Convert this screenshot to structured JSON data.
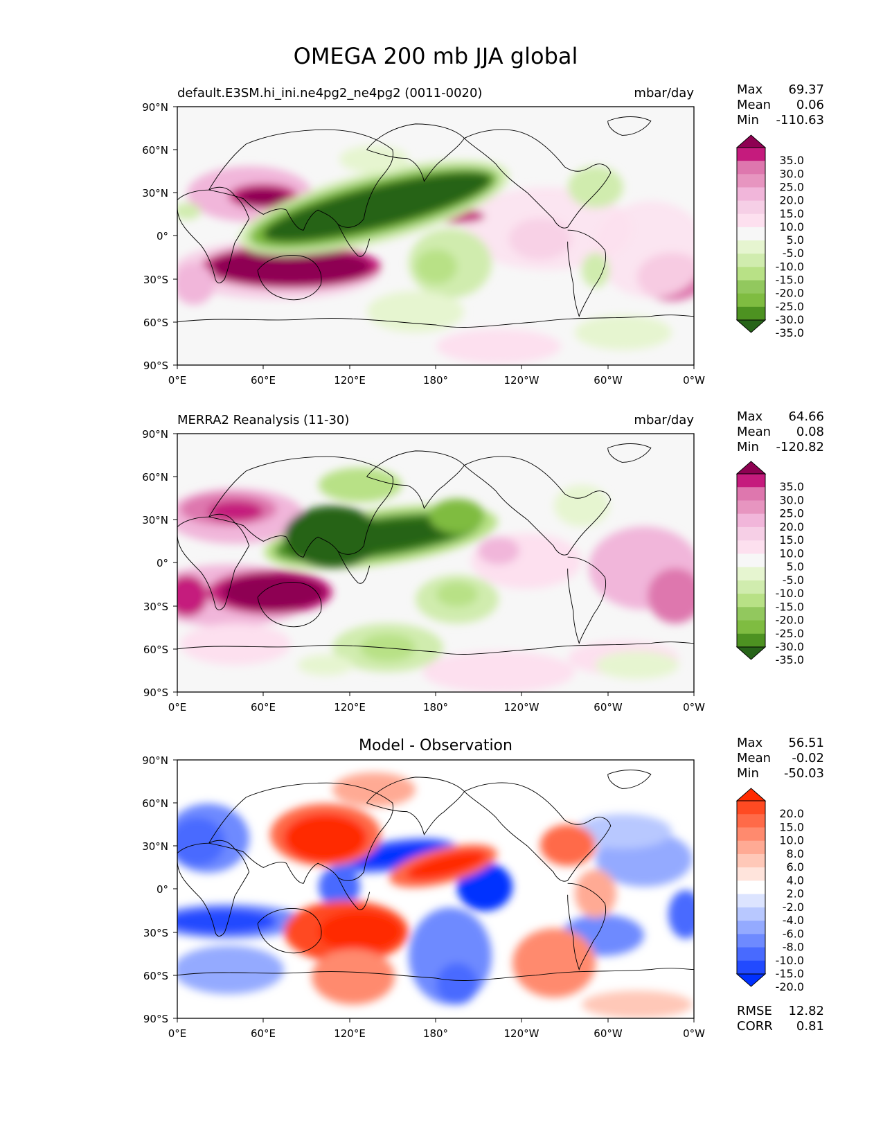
{
  "figure": {
    "title": "OMEGA 200 mb JJA global"
  },
  "axes": {
    "lat_ticks": [
      "90°N",
      "60°N",
      "30°N",
      "0°",
      "30°S",
      "60°S",
      "90°S"
    ],
    "lon_ticks": [
      "0°E",
      "60°E",
      "120°E",
      "180°",
      "120°W",
      "60°W",
      "0°W"
    ]
  },
  "panels": [
    {
      "left_title": "default.E3SM.hi_ini.ne4pg2_ne4pg2 (0011-0020)",
      "center_title": "",
      "units": "mbar/day",
      "stats": [
        {
          "label": "Max",
          "value": "69.37"
        },
        {
          "label": "Mean",
          "value": "0.06"
        },
        {
          "label": "Min",
          "value": "-110.63"
        }
      ],
      "colorbar": {
        "labels": [
          "35.0",
          "30.0",
          "25.0",
          "20.0",
          "15.0",
          "10.0",
          "5.0",
          "-5.0",
          "-10.0",
          "-15.0",
          "-20.0",
          "-25.0",
          "-30.0",
          "-35.0"
        ],
        "colors": [
          "#8e0152",
          "#c51b7d",
          "#de77ae",
          "#e795c0",
          "#f1b6da",
          "#f6cfe6",
          "#fde0ef",
          "#f7f7f7",
          "#e6f5d0",
          "#d0ecae",
          "#b8e186",
          "#92c85e",
          "#7fbc41",
          "#4d9221",
          "#276419"
        ]
      },
      "footer_stats": []
    },
    {
      "left_title": "MERRA2 Reanalysis (11-30)",
      "center_title": "",
      "units": "mbar/day",
      "stats": [
        {
          "label": "Max",
          "value": "64.66"
        },
        {
          "label": "Mean",
          "value": "0.08"
        },
        {
          "label": "Min",
          "value": "-120.82"
        }
      ],
      "colorbar": {
        "labels": [
          "35.0",
          "30.0",
          "25.0",
          "20.0",
          "15.0",
          "10.0",
          "5.0",
          "-5.0",
          "-10.0",
          "-15.0",
          "-20.0",
          "-25.0",
          "-30.0",
          "-35.0"
        ],
        "colors": [
          "#8e0152",
          "#c51b7d",
          "#de77ae",
          "#e795c0",
          "#f1b6da",
          "#f6cfe6",
          "#fde0ef",
          "#f7f7f7",
          "#e6f5d0",
          "#d0ecae",
          "#b8e186",
          "#92c85e",
          "#7fbc41",
          "#4d9221",
          "#276419"
        ]
      },
      "footer_stats": []
    },
    {
      "left_title": "",
      "center_title": "Model - Observation",
      "units": "",
      "stats": [
        {
          "label": "Max",
          "value": "56.51"
        },
        {
          "label": "Mean",
          "value": "-0.02"
        },
        {
          "label": "Min",
          "value": "-50.03"
        }
      ],
      "colorbar": {
        "labels": [
          "20.0",
          "15.0",
          "10.0",
          "8.0",
          "6.0",
          "4.0",
          "2.0",
          "-2.0",
          "-4.0",
          "-6.0",
          "-8.0",
          "-10.0",
          "-15.0",
          "-20.0"
        ],
        "colors": [
          "#ff2a00",
          "#ff4a22",
          "#ff6a48",
          "#ff8a6e",
          "#ffaa94",
          "#ffc8b8",
          "#ffe4dc",
          "#ffffff",
          "#dce4ff",
          "#b8c8ff",
          "#94aaff",
          "#6e8aff",
          "#486aff",
          "#224aff",
          "#0030ff"
        ]
      },
      "footer_stats": [
        {
          "label": "RMSE",
          "value": "12.82"
        },
        {
          "label": "CORR",
          "value": "0.81"
        }
      ]
    }
  ]
}
